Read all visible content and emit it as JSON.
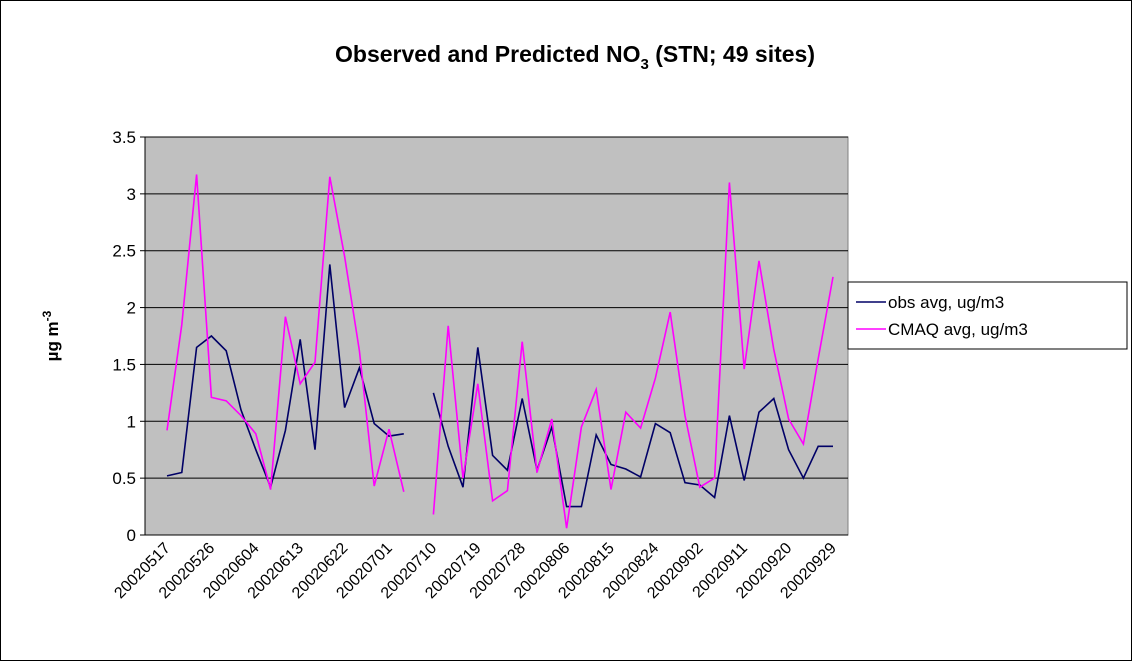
{
  "chart_data": {
    "type": "line",
    "title": [
      "Observed and Predicted NO",
      "3",
      " (STN; 49 sites)"
    ],
    "y_label": [
      "µg m",
      "-3"
    ],
    "categories": [
      "20020517",
      null,
      null,
      "20020526",
      null,
      null,
      "20020604",
      null,
      null,
      "20020613",
      null,
      null,
      "20020622",
      null,
      null,
      "20020701",
      null,
      null,
      "20020710",
      null,
      null,
      "20020719",
      null,
      null,
      "20020728",
      null,
      null,
      "20020806",
      null,
      null,
      "20020815",
      null,
      null,
      "20020824",
      null,
      null,
      "20020902",
      null,
      null,
      "20020911",
      null,
      null,
      "20020920",
      null,
      null,
      "20020929"
    ],
    "series": [
      {
        "name": "obs avg, ug/m3",
        "color": "#000066",
        "values": [
          0.52,
          0.55,
          1.65,
          1.75,
          1.62,
          1.1,
          0.75,
          0.42,
          0.92,
          1.72,
          0.75,
          2.38,
          1.12,
          1.47,
          0.98,
          0.87,
          0.89,
          null,
          1.25,
          0.78,
          0.42,
          1.65,
          0.7,
          0.57,
          1.2,
          0.57,
          0.95,
          0.25,
          0.25,
          0.88,
          0.62,
          0.58,
          0.51,
          0.98,
          0.9,
          0.46,
          0.44,
          0.33,
          1.05,
          0.48,
          1.08,
          1.2,
          0.75,
          0.5,
          0.78,
          0.78
        ]
      },
      {
        "name": "CMAQ avg, ug/m3",
        "color": "#ff00ff",
        "values": [
          0.92,
          1.85,
          3.17,
          1.21,
          1.18,
          1.05,
          0.89,
          0.4,
          1.92,
          1.33,
          1.52,
          3.15,
          2.45,
          1.62,
          0.43,
          0.93,
          0.38,
          null,
          0.18,
          1.84,
          0.5,
          1.33,
          0.3,
          0.39,
          1.7,
          0.55,
          1.02,
          0.06,
          0.95,
          1.28,
          0.4,
          1.08,
          0.94,
          1.38,
          1.96,
          1.05,
          0.42,
          0.5,
          3.1,
          1.46,
          2.41,
          1.63,
          1.02,
          0.8,
          1.55,
          2.27
        ]
      }
    ],
    "ylim": [
      0,
      3.5
    ],
    "yticks": [
      0,
      0.5,
      1,
      1.5,
      2,
      2.5,
      3,
      3.5
    ],
    "grid": true,
    "legend": "right",
    "plot_background": "#c0c0c0"
  }
}
